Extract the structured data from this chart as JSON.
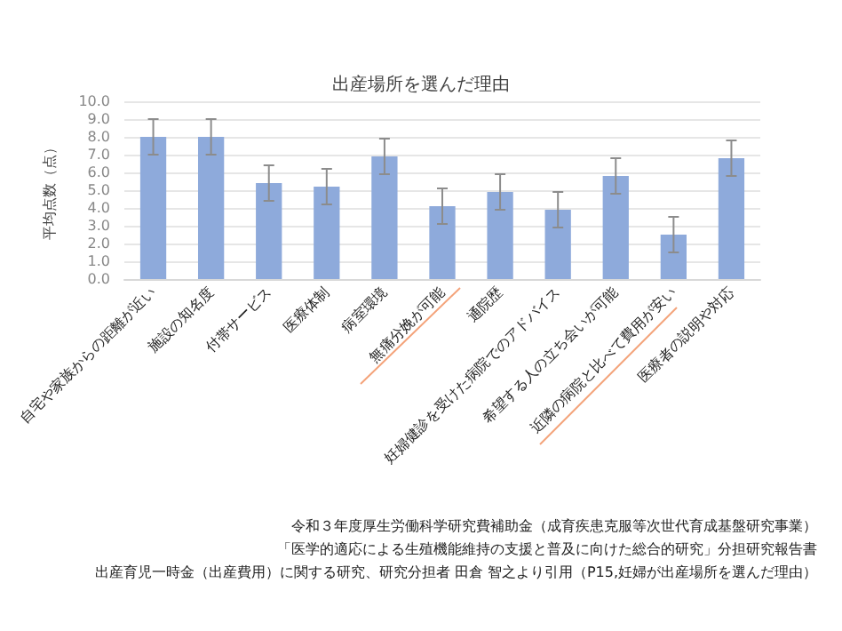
{
  "chart_data": {
    "type": "bar",
    "title": "出産場所を選んだ理由",
    "ylabel": "平均点数（点）",
    "categories": [
      "自宅や家族からの距離が近い",
      "施設の知名度",
      "付帯サービス",
      "医療体制",
      "病室環境",
      "無痛分娩が可能",
      "通院歴",
      "妊婦健診を受けた病院でのアドバイス",
      "希望する人の立ち会いが可能",
      "近隣の病院と比べて費用が安い",
      "医療者の説明や対応"
    ],
    "values": [
      8.0,
      8.0,
      5.4,
      5.2,
      6.9,
      4.1,
      4.9,
      3.9,
      5.8,
      2.5,
      6.8
    ],
    "errors": [
      1.0,
      1.0,
      1.0,
      1.0,
      1.0,
      1.0,
      1.0,
      1.0,
      1.0,
      1.0,
      1.0
    ],
    "color": "#8eaadb",
    "ylim": [
      0,
      10
    ],
    "yticks": [
      {
        "value": 0,
        "label": "0.0"
      },
      {
        "value": 1,
        "label": "1.0"
      },
      {
        "value": 2,
        "label": "2.0"
      },
      {
        "value": 3,
        "label": "3.0"
      },
      {
        "value": 4,
        "label": "4.0"
      },
      {
        "value": 5,
        "label": "5.0"
      },
      {
        "value": 6,
        "label": "6.0"
      },
      {
        "value": 7,
        "label": "7.0"
      },
      {
        "value": 8,
        "label": "8.0"
      },
      {
        "value": 9,
        "label": "9.0"
      },
      {
        "value": 10,
        "label": "10.0"
      }
    ],
    "grid": "y",
    "annotations": [
      "令和３年度厚生労働科学研究費補助金（成育疾患克服等次世代育成基盤研究事業）",
      "「医学的適応による生殖機能維持の支援と普及に向けた総合的研究」分担研究報告書",
      "出産育児一時金（出産費用）に関する研究、研究分担者 田倉 智之より引用（P15,妊婦が出産場所を選んだ理由）"
    ]
  }
}
